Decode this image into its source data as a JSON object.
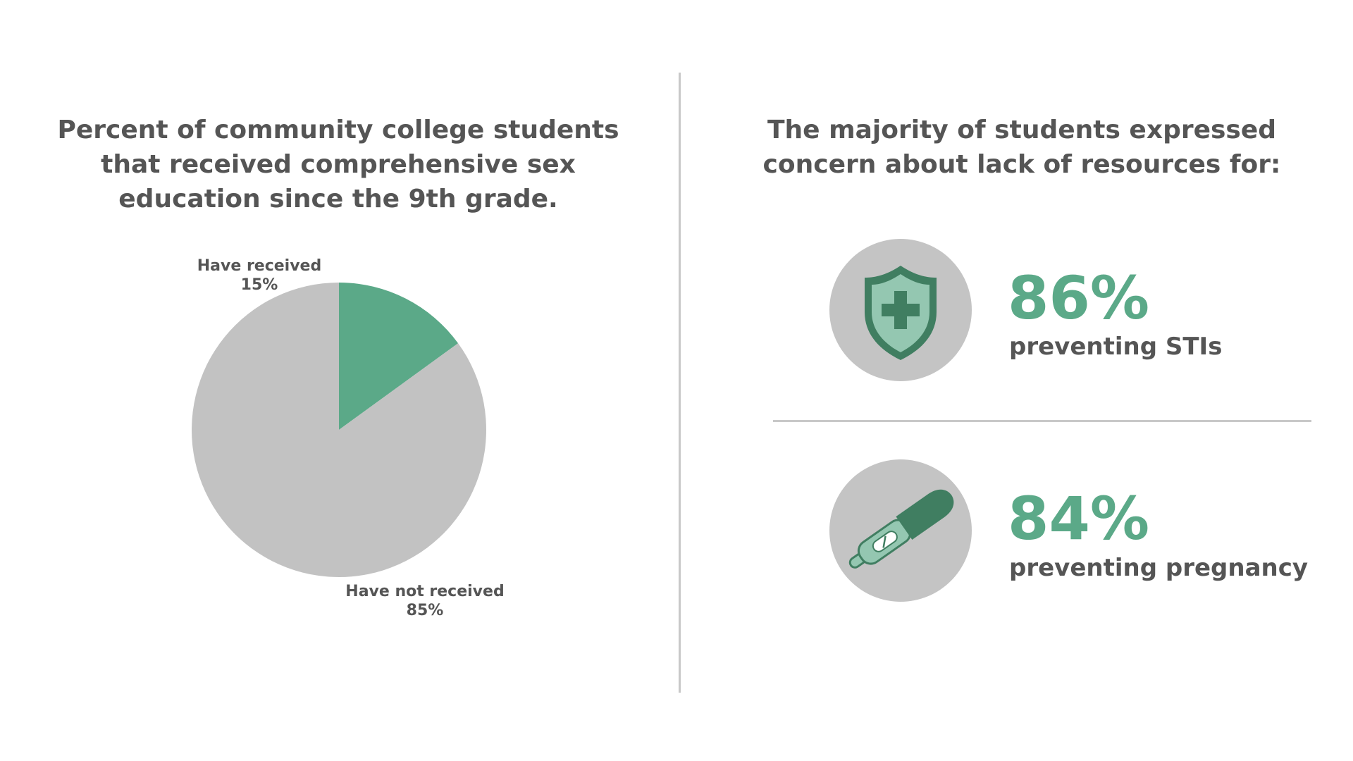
{
  "chart_data": {
    "type": "pie",
    "title": "Percent of community college students that received comprehensive sex education since the 9th grade.",
    "categories": [
      "Have received",
      "Have not received"
    ],
    "values": [
      15,
      85
    ],
    "value_labels": [
      "15%",
      "85%"
    ],
    "colors": [
      "#5ba988",
      "#c2c2c2"
    ]
  },
  "stats": {
    "heading": "The majority of students expressed concern about lack of resources for:",
    "items": [
      {
        "value": "86%",
        "label": "preventing STIs",
        "icon": "shield-medical-cross-icon"
      },
      {
        "value": "84%",
        "label": "preventing pregnancy",
        "icon": "pregnancy-test-icon"
      }
    ]
  },
  "colors": {
    "accent": "#5ba988",
    "accent_dark": "#407e61",
    "accent_light": "#94c7b1",
    "neutral": "#c4c4c4",
    "text": "#555555"
  }
}
